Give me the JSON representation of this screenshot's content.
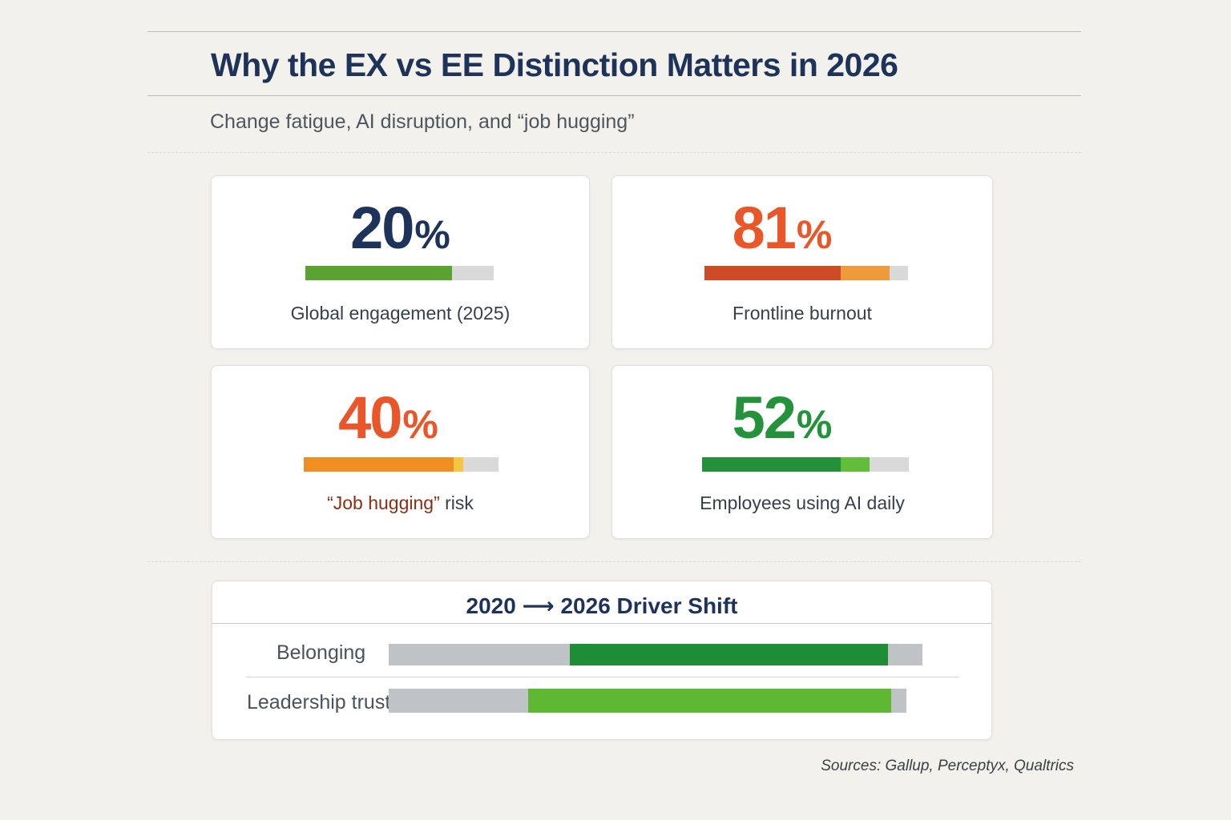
{
  "header": {
    "title": "Why the EX vs EE Distinction Matters in 2026",
    "subtitle": "Change fatigue, AI disruption, and “job hugging”"
  },
  "chart_data": [
    {
      "type": "bar",
      "stats": [
        {
          "value": "20",
          "unit": "%",
          "label": "Global engagement (2025)",
          "value_color": "#1d3359",
          "fill_fraction": 0.78,
          "segments": [
            {
              "fraction": 0.78,
              "color": "#5aa232"
            }
          ]
        },
        {
          "value": "81",
          "unit": "%",
          "label": "Frontline burnout",
          "value_color": "#e8562a",
          "fill_fraction": 0.91,
          "segments": [
            {
              "fraction": 0.67,
              "color": "#cf4a26"
            },
            {
              "fraction": 0.24,
              "color": "#ee9b3c"
            }
          ]
        },
        {
          "value": "40",
          "unit": "%",
          "label_parts": {
            "quoted": "“Job hugging”",
            "rest": " risk"
          },
          "value_color": "#e8562a",
          "fill_fraction": 0.82,
          "segments": [
            {
              "fraction": 0.77,
              "color": "#ef8f22"
            },
            {
              "fraction": 0.05,
              "color": "#f5c542"
            }
          ]
        },
        {
          "value": "52",
          "unit": "%",
          "label": "Employees using AI daily",
          "value_color": "#24923a",
          "fill_fraction": 0.81,
          "segments": [
            {
              "fraction": 0.67,
              "color": "#23913a"
            },
            {
              "fraction": 0.14,
              "color": "#62bd3a"
            }
          ]
        }
      ]
    },
    {
      "type": "bar",
      "title": "2020 ⟶ 2026 Driver Shift",
      "scale_max": 1.0,
      "series": [
        {
          "name": "Belonging",
          "start": 0.34,
          "end": 0.935,
          "color": "#1f8d35"
        },
        {
          "name": "Leadership trust",
          "start": 0.27,
          "end": 0.97,
          "color": "#5fb834"
        }
      ]
    }
  ],
  "footer": {
    "sources": "Sources: Gallup, Perceptyx, Qualtrics"
  }
}
